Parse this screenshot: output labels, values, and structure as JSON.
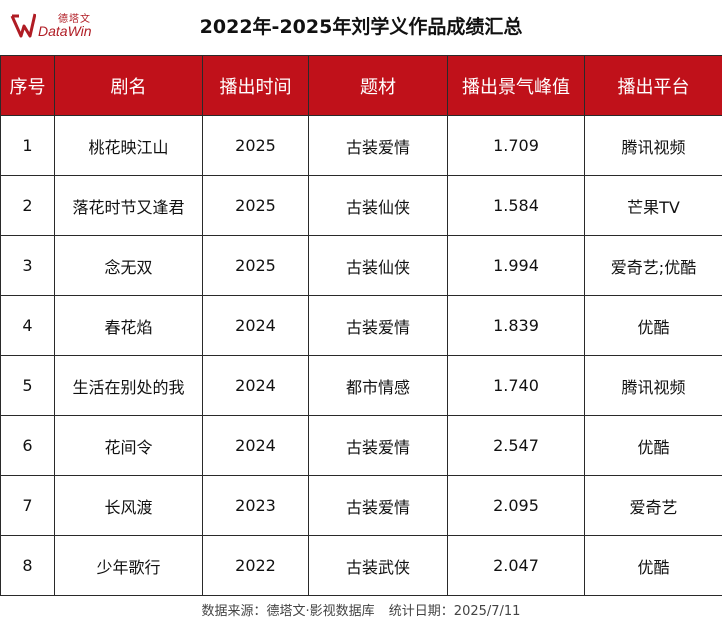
{
  "brand": {
    "name_cn": "德塔文",
    "name_en": "DataWin",
    "color": "#b01c24"
  },
  "title": "2022年-2025年刘学义作品成绩汇总",
  "table": {
    "header_bg": "#c0111a",
    "headers": [
      "序号",
      "剧名",
      "播出时间",
      "题材",
      "播出景气峰值",
      "播出平台"
    ],
    "rows": [
      [
        "1",
        "桃花映江山",
        "2025",
        "古装爱情",
        "1.709",
        "腾讯视频"
      ],
      [
        "2",
        "落花时节又逢君",
        "2025",
        "古装仙侠",
        "1.584",
        "芒果TV"
      ],
      [
        "3",
        "念无双",
        "2025",
        "古装仙侠",
        "1.994",
        "爱奇艺;优酷"
      ],
      [
        "4",
        "春花焰",
        "2024",
        "古装爱情",
        "1.839",
        "优酷"
      ],
      [
        "5",
        "生活在别处的我",
        "2024",
        "都市情感",
        "1.740",
        "腾讯视频"
      ],
      [
        "6",
        "花间令",
        "2024",
        "古装爱情",
        "2.547",
        "优酷"
      ],
      [
        "7",
        "长风渡",
        "2023",
        "古装爱情",
        "2.095",
        "爱奇艺"
      ],
      [
        "8",
        "少年歌行",
        "2022",
        "古装武侠",
        "2.047",
        "优酷"
      ]
    ]
  },
  "footer": {
    "source": "数据来源：德塔文·影视数据库",
    "date": "统计日期：2025/7/11"
  }
}
